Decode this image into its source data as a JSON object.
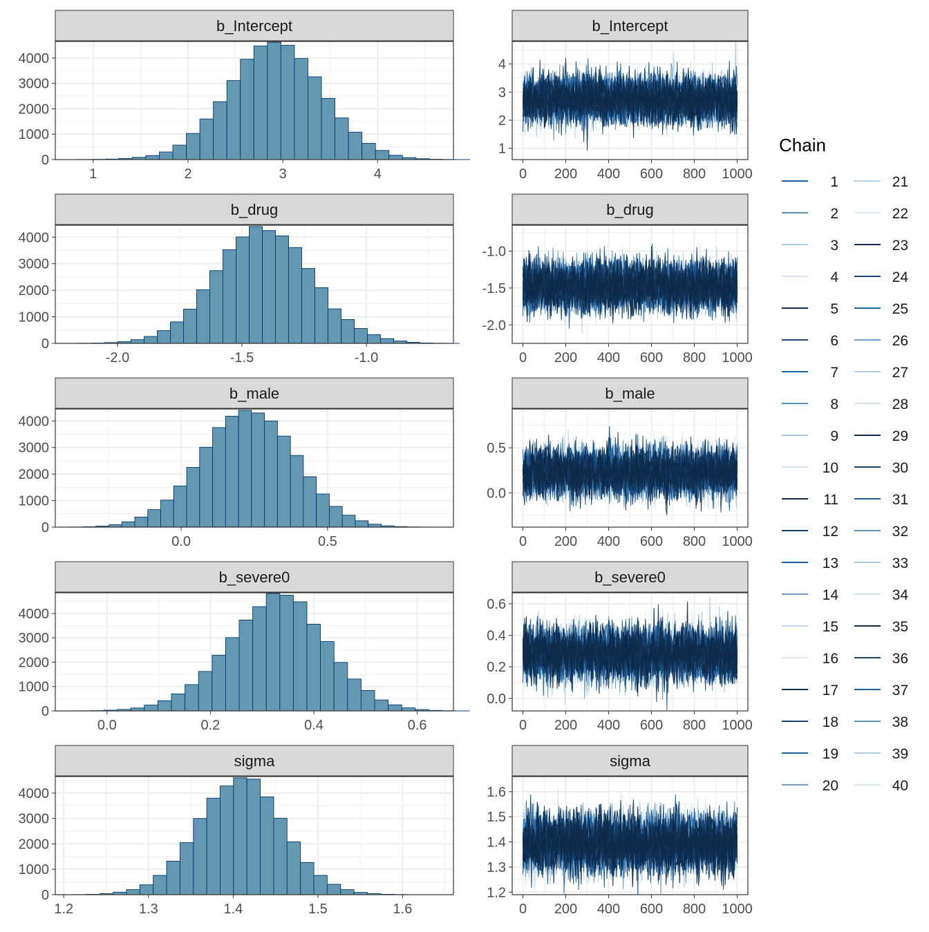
{
  "chart_data": {
    "type": "mcmc-diagnostics",
    "legend": {
      "title": "Chain",
      "labels": [
        "1",
        "2",
        "3",
        "4",
        "5",
        "6",
        "7",
        "8",
        "9",
        "10",
        "11",
        "12",
        "13",
        "14",
        "15",
        "16",
        "17",
        "18",
        "19",
        "20",
        "21",
        "22",
        "23",
        "24",
        "25",
        "26",
        "27",
        "28",
        "29",
        "30",
        "31",
        "32",
        "33",
        "34",
        "35",
        "36",
        "37",
        "38",
        "39",
        "40"
      ],
      "colors": [
        "#12609d",
        "#5a91b8",
        "#b0cde3",
        "#d6e5f1",
        "#102f57",
        "#1d4d7f",
        "#1565a7",
        "#5692b7",
        "#a6c7e0",
        "#d1e2ef",
        "#0e2a4f",
        "#163f6e",
        "#1a5e98",
        "#6b9cc0",
        "#bbd4e8",
        "#d8e7f2",
        "#0f2b45",
        "#17416f",
        "#1b62a3",
        "#6ea0c4",
        "#b8d3e8",
        "#dbe9f3",
        "#0f2d52",
        "#18477c",
        "#1b67a8",
        "#6ea1c5",
        "#aecde4",
        "#d3e4f0",
        "#0d2b4f",
        "#15416f",
        "#1a5e9c",
        "#5b93bb",
        "#aac8e0",
        "#d1e2ef",
        "#0e2c48",
        "#173f6e",
        "#1864a4",
        "#5f97be",
        "#b0cde3",
        "#d6e6f2"
      ],
      "position": "right"
    },
    "panels": [
      {
        "name": "b_Intercept",
        "hist": {
          "xlim": [
            0.6,
            4.8
          ],
          "xticks": [
            1,
            2,
            3,
            4
          ],
          "xtick_labels": [
            "1",
            "2",
            "3",
            "4"
          ],
          "ylim": [
            0,
            4650
          ],
          "yticks": [
            0,
            1000,
            2000,
            3000,
            4000
          ],
          "ytick_labels": [
            "0",
            "1000",
            "2000",
            "3000",
            "4000"
          ],
          "bin_start": 0.7,
          "bin_width": 0.1425,
          "counts": [
            2,
            5,
            10,
            20,
            45,
            90,
            160,
            300,
            570,
            1030,
            1600,
            2280,
            3110,
            3950,
            4470,
            4620,
            4500,
            3980,
            3260,
            2410,
            1640,
            1080,
            640,
            360,
            170,
            78,
            35,
            12,
            4,
            1
          ]
        },
        "trace": {
          "xlim": [
            -50,
            1050
          ],
          "xticks": [
            0,
            200,
            400,
            600,
            800,
            1000
          ],
          "xtick_labels": [
            "0",
            "200",
            "400",
            "600",
            "800",
            "1000"
          ],
          "ylim": [
            0.6,
            4.8
          ],
          "yticks": [
            1,
            2,
            3,
            4
          ],
          "ytick_labels": [
            "1",
            "2",
            "3",
            "4"
          ],
          "center": 2.75,
          "sd": 0.42,
          "n_iter": 1000
        }
      },
      {
        "name": "b_drug",
        "hist": {
          "xlim": [
            -2.25,
            -0.65
          ],
          "xticks": [
            -2.0,
            -1.5,
            -1.0
          ],
          "xtick_labels": [
            "-2.0",
            "-1.5",
            "-1.0"
          ],
          "ylim": [
            0,
            4450
          ],
          "yticks": [
            0,
            1000,
            2000,
            3000,
            4000
          ],
          "ytick_labels": [
            "0",
            "1000",
            "2000",
            "3000",
            "4000"
          ],
          "bin_start": -2.21,
          "bin_width": 0.0528,
          "counts": [
            2,
            5,
            12,
            30,
            65,
            140,
            260,
            480,
            810,
            1290,
            2020,
            2740,
            3530,
            4010,
            4400,
            4250,
            4050,
            3610,
            2820,
            2100,
            1300,
            900,
            560,
            330,
            180,
            90,
            40,
            15,
            5,
            2
          ]
        },
        "trace": {
          "xlim": [
            -50,
            1050
          ],
          "xticks": [
            0,
            200,
            400,
            600,
            800,
            1000
          ],
          "xtick_labels": [
            "0",
            "200",
            "400",
            "600",
            "800",
            "1000"
          ],
          "ylim": [
            -2.25,
            -0.65
          ],
          "yticks": [
            -2.0,
            -1.5,
            -1.0
          ],
          "ytick_labels": [
            "-2.0",
            "-1.5",
            "-1.0"
          ],
          "center": -1.47,
          "sd": 0.165,
          "n_iter": 1000
        }
      },
      {
        "name": "b_male",
        "hist": {
          "xlim": [
            -0.43,
            0.93
          ],
          "xticks": [
            0.0,
            0.5
          ],
          "xtick_labels": [
            "0.0",
            "0.5"
          ],
          "ylim": [
            0,
            4450
          ],
          "yticks": [
            0,
            1000,
            2000,
            3000,
            4000
          ],
          "ytick_labels": [
            "0",
            "1000",
            "2000",
            "3000",
            "4000"
          ],
          "bin_start": -0.38,
          "bin_width": 0.0443,
          "counts": [
            5,
            15,
            40,
            90,
            200,
            380,
            660,
            1020,
            1550,
            2250,
            3010,
            3750,
            4180,
            4400,
            4300,
            4000,
            3430,
            2700,
            1900,
            1250,
            780,
            450,
            240,
            110,
            50,
            20,
            8,
            3,
            1,
            0
          ]
        },
        "trace": {
          "xlim": [
            -50,
            1050
          ],
          "xticks": [
            0,
            200,
            400,
            600,
            800,
            1000
          ],
          "xtick_labels": [
            "0",
            "200",
            "400",
            "600",
            "800",
            "1000"
          ],
          "ylim": [
            -0.38,
            0.93
          ],
          "yticks": [
            0.0,
            0.5
          ],
          "ytick_labels": [
            "0.0",
            "0.5"
          ],
          "center": 0.23,
          "sd": 0.135,
          "n_iter": 1000
        }
      },
      {
        "name": "b_severe0",
        "hist": {
          "xlim": [
            -0.1,
            0.67
          ],
          "xticks": [
            0.0,
            0.2,
            0.4,
            0.6
          ],
          "xtick_labels": [
            "0.0",
            "0.2",
            "0.4",
            "0.6"
          ],
          "ylim": [
            0,
            4850
          ],
          "yticks": [
            0,
            1000,
            2000,
            3000,
            4000
          ],
          "ytick_labels": [
            "0",
            "1000",
            "2000",
            "3000",
            "4000"
          ],
          "bin_start": -0.085,
          "bin_width": 0.0262,
          "counts": [
            2,
            5,
            12,
            30,
            60,
            120,
            240,
            420,
            700,
            1080,
            1620,
            2290,
            3010,
            3730,
            4280,
            4820,
            4750,
            4480,
            3560,
            2850,
            1990,
            1310,
            840,
            450,
            250,
            125,
            55,
            20,
            6,
            2
          ]
        },
        "trace": {
          "xlim": [
            -50,
            1050
          ],
          "xticks": [
            0,
            200,
            400,
            600,
            800,
            1000
          ],
          "xtick_labels": [
            "0",
            "200",
            "400",
            "600",
            "800",
            "1000"
          ],
          "ylim": [
            -0.08,
            0.67
          ],
          "yticks": [
            0.0,
            0.2,
            0.4,
            0.6
          ],
          "ytick_labels": [
            "0.0",
            "0.2",
            "0.4",
            "0.6"
          ],
          "center": 0.28,
          "sd": 0.085,
          "n_iter": 1000
        }
      },
      {
        "name": "sigma",
        "hist": {
          "xlim": [
            1.19,
            1.66
          ],
          "xticks": [
            1.2,
            1.3,
            1.4,
            1.5,
            1.6
          ],
          "xtick_labels": [
            "1.2",
            "1.3",
            "1.4",
            "1.5",
            "1.6"
          ],
          "ylim": [
            0,
            4650
          ],
          "yticks": [
            0,
            1000,
            2000,
            3000,
            4000
          ],
          "ytick_labels": [
            "0",
            "1000",
            "2000",
            "3000",
            "4000"
          ],
          "bin_start": 1.195,
          "bin_width": 0.0158,
          "counts": [
            2,
            5,
            15,
            40,
            100,
            200,
            390,
            760,
            1320,
            2050,
            3000,
            3800,
            4280,
            4600,
            4550,
            3850,
            3010,
            2080,
            1270,
            760,
            410,
            200,
            90,
            40,
            15,
            6,
            2,
            1,
            0,
            0
          ]
        },
        "trace": {
          "xlim": [
            -50,
            1050
          ],
          "xticks": [
            0,
            200,
            400,
            600,
            800,
            1000
          ],
          "xtick_labels": [
            "0",
            "200",
            "400",
            "600",
            "800",
            "1000"
          ],
          "ylim": [
            1.19,
            1.66
          ],
          "yticks": [
            1.2,
            1.3,
            1.4,
            1.5,
            1.6
          ],
          "ytick_labels": [
            "1.2",
            "1.3",
            "1.4",
            "1.5",
            "1.6"
          ],
          "center": 1.395,
          "sd": 0.058,
          "n_iter": 1000
        }
      }
    ]
  },
  "colors": {
    "hist_fill": "#6497b1",
    "hist_stroke": "#03396c",
    "strip_fill": "#d9d9d9",
    "grid": "#ebebeb",
    "panel_border": "#333333"
  }
}
